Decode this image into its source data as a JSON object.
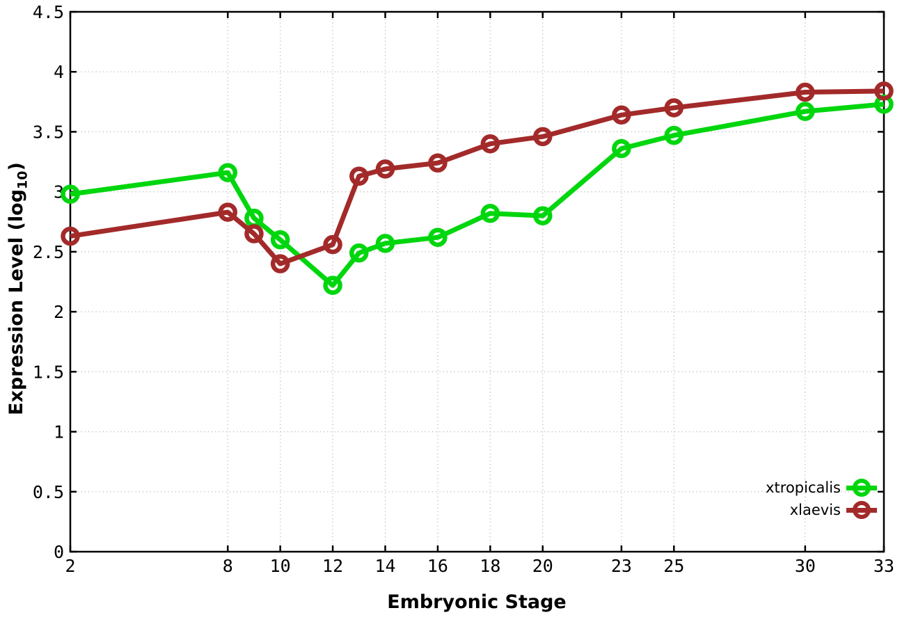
{
  "page": {
    "background": "#ffffff"
  },
  "chart_data": {
    "type": "line",
    "title": "",
    "xlabel": "Embryonic Stage",
    "ylabel": "Expression Level (log10)",
    "ylabel_parts": {
      "prefix": "Expression Level (log",
      "sub": "10",
      "suffix": ")"
    },
    "x": [
      2,
      8,
      9,
      10,
      12,
      13,
      14,
      16,
      18,
      20,
      23,
      25,
      30,
      33
    ],
    "series": [
      {
        "name": "xtropicalis",
        "color": "#00d60e",
        "marker": "open-circle",
        "values": [
          2.98,
          3.16,
          2.78,
          2.6,
          2.22,
          2.49,
          2.57,
          2.62,
          2.82,
          2.8,
          3.36,
          3.47,
          3.67,
          3.73
        ]
      },
      {
        "name": "xlaevis",
        "color": "#a32a2a",
        "marker": "open-circle",
        "values": [
          2.63,
          2.83,
          2.65,
          2.4,
          2.56,
          3.13,
          3.19,
          3.24,
          3.4,
          3.46,
          3.64,
          3.7,
          3.83,
          3.84
        ]
      }
    ],
    "xlim": [
      2,
      33
    ],
    "ylim": [
      0,
      4.5
    ],
    "xticks": {
      "values": [
        2,
        8,
        10,
        12,
        14,
        16,
        18,
        20,
        23,
        25,
        30,
        33
      ],
      "labels": [
        "2",
        "8",
        "10",
        "12",
        "14",
        "16",
        "18",
        "20",
        "23",
        "25",
        "30",
        "33"
      ]
    },
    "yticks": {
      "values": [
        0,
        0.5,
        1,
        1.5,
        2,
        2.5,
        3,
        3.5,
        4,
        4.5
      ],
      "labels": [
        "0",
        "0.5",
        "1",
        "1.5",
        "2",
        "2.5",
        "3",
        "3.5",
        "4",
        "4.5"
      ]
    },
    "grid": true,
    "legend_position": "bottom-right",
    "colors": {
      "grid": "#b8b8b8",
      "axis": "#000000",
      "tick_label": "#000000"
    }
  }
}
